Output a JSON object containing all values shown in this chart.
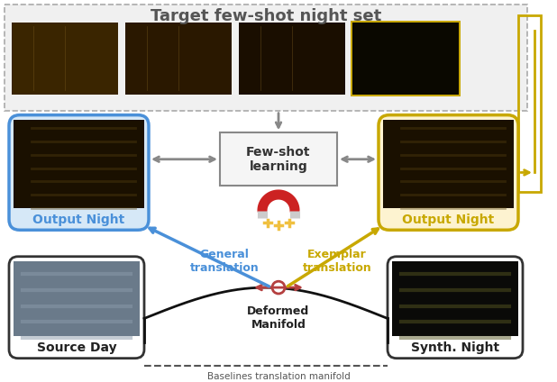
{
  "title": "Target few-shot night set",
  "title_fontsize": 13,
  "title_color": "#555555",
  "bg_color": "#ffffff",
  "top_box_bg": "#f0f0f0",
  "top_box_border": "#aaaaaa",
  "top_box_style": "dashed",
  "blue_box_bg": "#d6e8f7",
  "blue_box_border": "#4a90d9",
  "yellow_box_bg": "#fdf3d0",
  "yellow_box_border": "#c8a800",
  "black_box_border": "#222222",
  "fewshot_box_bg": "#f5f5f5",
  "fewshot_box_border": "#888888",
  "fewshot_text": "Few-shot\nlearning",
  "blue_label": "Output Night",
  "yellow_label": "Output Night",
  "source_label": "Source Day",
  "synth_label": "Synth. Night",
  "general_text": "General\ntranslation",
  "exemplar_text": "Exemplar\ntranslation",
  "deformed_text": "Deformed\nManifold",
  "baseline_text": "Baselines translation manifold",
  "general_color": "#4a90d9",
  "exemplar_color": "#c8a800",
  "deformed_arrow_color": "#b54040",
  "manifold_line_color": "#111111",
  "baseline_dash_color": "#555555",
  "magnet_red": "#cc2222",
  "magnet_gray": "#cccccc",
  "magnet_yellow": "#f0c040",
  "gray_arrow_color": "#888888",
  "exemplar_arrow_to_yellow_box_color": "#c8a800",
  "night_img_colors": [
    "#3a2800",
    "#2a1a00",
    "#1a0d00"
  ],
  "day_img_color": "#7a8a9a",
  "synth_img_color": "#1a1a10"
}
